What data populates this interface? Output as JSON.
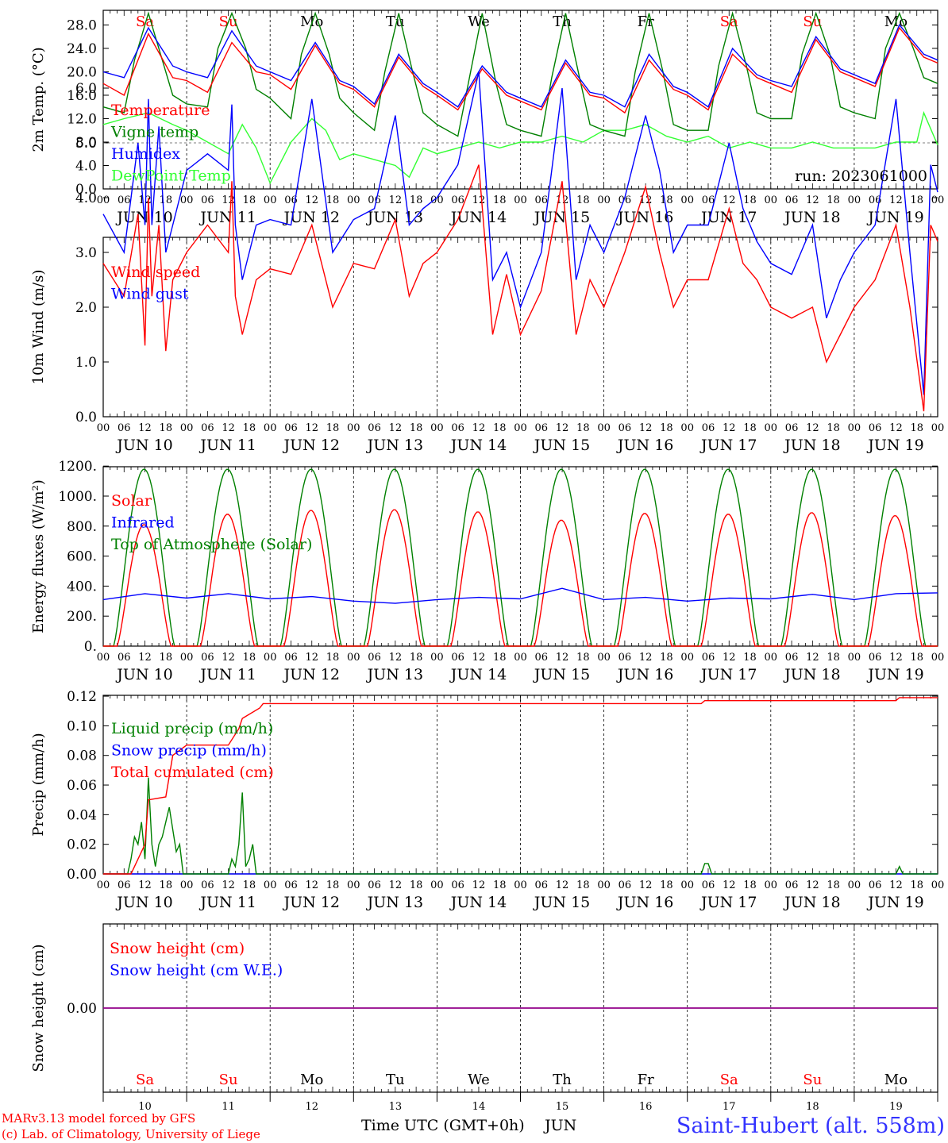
{
  "chart_data": [
    {
      "type": "line",
      "ylabel": "2m Temp. (°C)",
      "ylim": [
        0,
        30
      ],
      "yticks": [
        "0.0",
        "4.0",
        "8.0",
        "12.0",
        "16.0",
        "20.0",
        "24.0",
        "28.0"
      ],
      "ytick_values": [
        0,
        4,
        8,
        12,
        16,
        20,
        24,
        28
      ],
      "run_label": "run: 2023061000",
      "series": [
        {
          "name": "Temperature",
          "color": "#ff0000",
          "x": [
            0,
            6,
            13,
            20,
            24,
            30,
            37,
            44,
            48,
            54,
            61,
            68,
            72,
            78,
            85,
            92,
            96,
            102,
            109,
            116,
            120,
            126,
            133,
            140,
            144,
            150,
            157,
            164,
            168,
            174,
            181,
            188,
            192,
            198,
            205,
            212,
            216,
            222,
            229,
            236,
            240
          ],
          "values": [
            18,
            16,
            26.5,
            19,
            18.5,
            16.5,
            25,
            20,
            19.5,
            17,
            24.5,
            18,
            17,
            14,
            22.5,
            17.5,
            16,
            13.5,
            20.5,
            16,
            15,
            13.5,
            21.5,
            16,
            15.5,
            13,
            22,
            17,
            16,
            13.5,
            23,
            19,
            18,
            16.5,
            25.5,
            20,
            19,
            17.5,
            27.5,
            22.5,
            21.5
          ]
        },
        {
          "name": "Vigne temp",
          "color": "#008000",
          "x": [
            0,
            6,
            9,
            13,
            17,
            20,
            24,
            30,
            33,
            37,
            41,
            44,
            48,
            54,
            57,
            61,
            65,
            68,
            72,
            78,
            81,
            85,
            89,
            92,
            96,
            102,
            105,
            109,
            113,
            116,
            120,
            126,
            129,
            133,
            137,
            140,
            144,
            150,
            153,
            157,
            161,
            164,
            168,
            174,
            177,
            181,
            185,
            188,
            192,
            198,
            201,
            205,
            209,
            212,
            216,
            222,
            225,
            229,
            233,
            236,
            240
          ],
          "values": [
            14,
            13,
            22,
            30,
            22,
            16,
            14.5,
            14,
            24,
            30,
            24,
            17,
            15.5,
            12,
            23,
            30,
            23,
            15.5,
            13,
            10,
            20,
            30,
            20,
            13,
            11,
            9,
            18,
            30,
            18,
            11,
            10,
            9,
            19,
            30,
            19,
            11,
            10,
            9,
            20,
            30,
            20,
            11,
            10,
            10,
            21,
            30,
            21,
            13,
            12,
            12,
            23,
            30,
            23,
            14,
            13,
            12,
            24,
            30,
            24,
            19,
            18
          ]
        },
        {
          "name": "Humidex",
          "color": "#0000ff",
          "x": [
            0,
            6,
            13,
            20,
            24,
            30,
            37,
            44,
            48,
            54,
            61,
            68,
            72,
            78,
            85,
            92,
            96,
            102,
            109,
            116,
            120,
            126,
            133,
            140,
            144,
            150,
            157,
            164,
            168,
            174,
            181,
            188,
            192,
            198,
            205,
            212,
            216,
            222,
            229,
            236,
            240
          ],
          "values": [
            20,
            19,
            27.5,
            21,
            20,
            19,
            27,
            21,
            20,
            18.5,
            25,
            18.5,
            17.5,
            14.5,
            23,
            18,
            16.5,
            14,
            21,
            16.5,
            15.5,
            14,
            22,
            16.5,
            16,
            14,
            23,
            17.5,
            16.5,
            14,
            24,
            19.5,
            18.5,
            17.5,
            26,
            20.5,
            19.5,
            18,
            28,
            23,
            22
          ]
        },
        {
          "name": "DewPoint Temp",
          "color": "#33ff33",
          "x": [
            0,
            6,
            13,
            20,
            24,
            30,
            36,
            40,
            44,
            48,
            54,
            60,
            64,
            68,
            72,
            78,
            84,
            88,
            92,
            96,
            102,
            108,
            114,
            120,
            126,
            132,
            138,
            144,
            150,
            156,
            162,
            168,
            174,
            180,
            186,
            192,
            198,
            204,
            210,
            216,
            222,
            228,
            234,
            236,
            240
          ],
          "values": [
            11,
            12,
            13,
            11,
            10,
            8,
            6,
            11,
            7,
            1,
            8,
            12,
            10,
            5,
            6,
            5,
            4,
            2,
            7,
            6,
            7,
            8,
            7,
            8,
            8,
            9,
            8,
            10,
            10,
            11,
            9,
            8,
            9,
            7,
            8,
            7,
            7,
            8,
            7,
            7,
            7,
            8,
            8,
            13,
            7.5
          ]
        }
      ]
    },
    {
      "type": "line",
      "ylabel": "10m Wind (m/s)",
      "ylim": [
        0,
        6.5
      ],
      "yticks": [
        "0.0",
        "1.0",
        "2.0",
        "3.0",
        "4.0",
        "5.0",
        "6.0"
      ],
      "ytick_values": [
        0,
        1,
        2,
        3,
        4,
        5,
        6
      ],
      "series": [
        {
          "name": "Wind speed",
          "color": "#ff0000",
          "x": [
            0,
            6,
            10,
            12,
            13,
            14,
            16,
            18,
            20,
            24,
            30,
            36,
            37,
            38,
            40,
            44,
            48,
            54,
            60,
            66,
            72,
            78,
            84,
            88,
            92,
            96,
            102,
            108,
            112,
            116,
            120,
            126,
            132,
            136,
            140,
            144,
            150,
            156,
            160,
            164,
            168,
            174,
            180,
            184,
            188,
            192,
            198,
            204,
            208,
            212,
            216,
            222,
            228,
            232,
            236,
            238,
            240
          ],
          "values": [
            2.8,
            2.2,
            3.7,
            1.3,
            4.0,
            2.2,
            3.5,
            1.2,
            2.5,
            3,
            3.5,
            3,
            4.3,
            2.2,
            1.5,
            2.5,
            2.7,
            2.6,
            3.5,
            2,
            2.8,
            2.7,
            3.6,
            2.2,
            2.8,
            3,
            3.6,
            4.6,
            1.5,
            2.6,
            1.5,
            2.3,
            4.3,
            1.5,
            2.5,
            2,
            3.0,
            4.2,
            3,
            2,
            2.5,
            2.5,
            3.8,
            2.8,
            2.5,
            2,
            1.8,
            2.0,
            1.0,
            1.5,
            2,
            2.5,
            3.5,
            2.0,
            0.1,
            3.5,
            3.2
          ]
        },
        {
          "name": "Wind gust",
          "color": "#0000ff",
          "x": [
            0,
            6,
            10,
            12,
            13,
            14,
            16,
            18,
            20,
            24,
            30,
            36,
            37,
            38,
            40,
            44,
            48,
            54,
            60,
            66,
            72,
            78,
            84,
            88,
            92,
            96,
            102,
            108,
            112,
            116,
            120,
            126,
            132,
            136,
            140,
            144,
            150,
            156,
            160,
            164,
            168,
            174,
            180,
            184,
            188,
            192,
            198,
            204,
            208,
            212,
            216,
            222,
            228,
            232,
            236,
            238,
            240
          ],
          "values": [
            3.7,
            3.0,
            5.0,
            3.5,
            5.8,
            3.5,
            5.3,
            3.0,
            3.5,
            4.5,
            4.8,
            4.5,
            5.7,
            3.5,
            2.5,
            3.5,
            3.6,
            3.5,
            5.8,
            3.0,
            3.6,
            3.8,
            5.5,
            3.5,
            3.8,
            4.0,
            4.6,
            6.3,
            2.5,
            3.0,
            2.0,
            3.0,
            6.0,
            2.5,
            3.5,
            3.0,
            4.0,
            5.5,
            4.5,
            3.0,
            3.5,
            3.5,
            5.0,
            3.8,
            3.2,
            2.8,
            2.6,
            3.5,
            1.8,
            2.5,
            3.0,
            3.5,
            5.8,
            3.0,
            0.4,
            4.6,
            4.1
          ]
        }
      ]
    },
    {
      "type": "line",
      "ylabel": "Energy fluxes (W/m²)",
      "ylim": [
        0,
        1250
      ],
      "yticks": [
        "0.",
        "200.",
        "400.",
        "600.",
        "800.",
        "1000.",
        "1200."
      ],
      "ytick_values": [
        0,
        200,
        400,
        600,
        800,
        1000,
        1200
      ],
      "series": [
        {
          "name": "Solar",
          "color": "#ff0000",
          "daily_peak": [
            810,
            880,
            905,
            910,
            895,
            840,
            885,
            880,
            890,
            870
          ]
        },
        {
          "name": "Infrared",
          "color": "#0000ff",
          "x": [
            0,
            12,
            24,
            36,
            48,
            60,
            72,
            84,
            96,
            108,
            120,
            132,
            144,
            156,
            168,
            180,
            192,
            204,
            216,
            228,
            240
          ],
          "values": [
            310,
            350,
            320,
            350,
            315,
            330,
            300,
            285,
            310,
            325,
            315,
            385,
            310,
            325,
            300,
            320,
            315,
            345,
            310,
            350,
            355
          ]
        },
        {
          "name": "Top of Atmosphere (Solar)",
          "color": "#008000",
          "daily_peak": [
            1180,
            1180,
            1180,
            1180,
            1180,
            1180,
            1180,
            1180,
            1180,
            1180
          ]
        }
      ]
    },
    {
      "type": "line",
      "ylabel": "Precip (mm/h)",
      "ylim": [
        0,
        0.12
      ],
      "yticks": [
        "0.00",
        "0.02",
        "0.04",
        "0.06",
        "0.08",
        "0.10",
        "0.12"
      ],
      "ytick_values": [
        0,
        0.02,
        0.04,
        0.06,
        0.08,
        0.1,
        0.12
      ],
      "series": [
        {
          "name": "Liquid precip (mm/h)",
          "color": "#008000",
          "x": [
            0,
            7,
            8,
            9,
            10,
            11,
            12,
            13,
            14,
            15,
            16,
            17,
            18,
            19,
            20,
            21,
            22,
            23,
            24,
            36,
            37,
            38,
            39,
            40,
            41,
            42,
            43,
            44,
            45,
            172,
            173,
            174,
            175,
            228,
            229,
            230,
            240
          ],
          "values": [
            0,
            0,
            0.01,
            0.025,
            0.02,
            0.035,
            0.01,
            0.065,
            0.02,
            0.005,
            0.02,
            0.025,
            0.035,
            0.045,
            0.03,
            0.015,
            0.02,
            0,
            0,
            0,
            0.01,
            0.005,
            0.02,
            0.055,
            0.005,
            0.01,
            0.02,
            0,
            0,
            0,
            0.007,
            0.007,
            0,
            0,
            0.005,
            0,
            0
          ]
        },
        {
          "name": "Snow precip (mm/h)",
          "color": "#0000ff",
          "x": [
            0,
            240
          ],
          "values": [
            0,
            0
          ]
        },
        {
          "name": "Total cumulated (cm)",
          "color": "#ff0000",
          "x": [
            0,
            8,
            12,
            13,
            18,
            20,
            24,
            36,
            39,
            40,
            45,
            46,
            48,
            100,
            172,
            173,
            228,
            229,
            240
          ],
          "values": [
            0,
            0,
            0.02,
            0.05,
            0.052,
            0.08,
            0.087,
            0.087,
            0.098,
            0.105,
            0.112,
            0.115,
            0.115,
            0.115,
            0.115,
            0.117,
            0.117,
            0.119,
            0.119
          ]
        }
      ]
    },
    {
      "type": "line",
      "ylabel": "Snow height (cm)",
      "yticks": [
        "0.00"
      ],
      "ytick_values": [
        0
      ],
      "series": [
        {
          "name": "Snow height (cm)",
          "color": "#ff0000",
          "x": [
            0,
            240
          ],
          "values": [
            0,
            0
          ]
        },
        {
          "name": "Snow height (cm W.E.)",
          "color": "#0000ff",
          "x": [
            0,
            240
          ],
          "values": [
            0,
            0
          ]
        }
      ]
    }
  ],
  "axis": {
    "hour_ticks": [
      "00",
      "06",
      "12",
      "18"
    ],
    "end_tick": "00",
    "dates": [
      "JUN 10",
      "JUN 11",
      "JUN 12",
      "JUN 13",
      "JUN 14",
      "JUN 15",
      "JUN 16",
      "JUN 17",
      "JUN 18",
      "JUN 19"
    ],
    "weekdays": [
      "Sa",
      "Su",
      "Mo",
      "Tu",
      "We",
      "Th",
      "Fr",
      "Sa",
      "Su",
      "Mo"
    ],
    "weekend": [
      true,
      true,
      false,
      false,
      false,
      false,
      false,
      true,
      true,
      false
    ],
    "day_numbers": [
      "10",
      "11",
      "12",
      "13",
      "14",
      "15",
      "16",
      "17",
      "18",
      "19"
    ],
    "xlabel": "Time UTC (GMT+0h)",
    "month": "JUN"
  },
  "footer": {
    "credit_line1": "MARv3.13 model forced by GFS",
    "credit_line2": "(c) Lab. of Climatology, University of Liege",
    "station": "Saint-Hubert (alt. 558m)"
  },
  "colors": {
    "weekend": "#ff0000",
    "weekday": "#000000",
    "station": "#3333ff"
  }
}
